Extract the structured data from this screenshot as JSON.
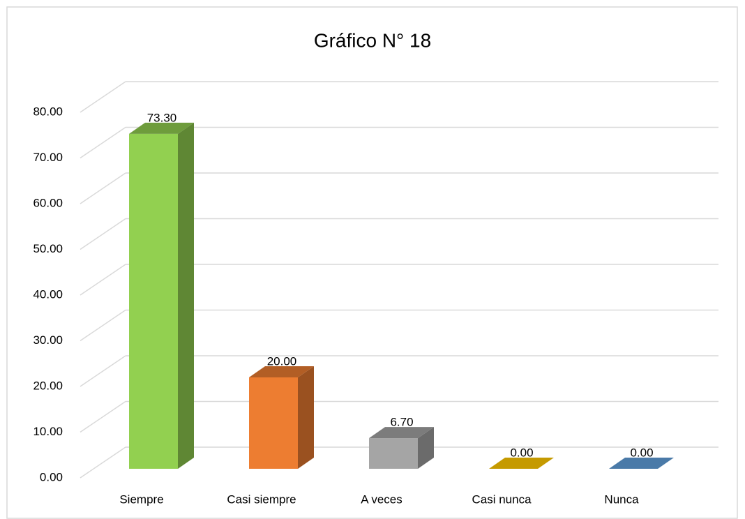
{
  "chart_data": {
    "type": "bar3d",
    "title": "Gráfico N° 18",
    "categories": [
      "Siempre",
      "Casi siempre",
      "A veces",
      "Casi nunca",
      "Nunca"
    ],
    "values": [
      73.3,
      20,
      6.7,
      0,
      0
    ],
    "value_labels": [
      "73.30",
      "20.00",
      "6.70",
      "0.00",
      "0.00"
    ],
    "colors": [
      "#92d050",
      "#ed7d31",
      "#a5a5a5",
      "#c59a00",
      "#4a7aa8"
    ],
    "ylim": [
      0,
      80
    ],
    "yticks": [
      {
        "value": 0,
        "label": "0.00"
      },
      {
        "value": 10,
        "label": "10.00"
      },
      {
        "value": 20,
        "label": "20.00"
      },
      {
        "value": 30,
        "label": "30.00"
      },
      {
        "value": 40,
        "label": "40.00"
      },
      {
        "value": 50,
        "label": "50.00"
      },
      {
        "value": 60,
        "label": "60.00"
      },
      {
        "value": 70,
        "label": "70.00"
      },
      {
        "value": 80,
        "label": "80.00"
      }
    ],
    "grid": true
  }
}
